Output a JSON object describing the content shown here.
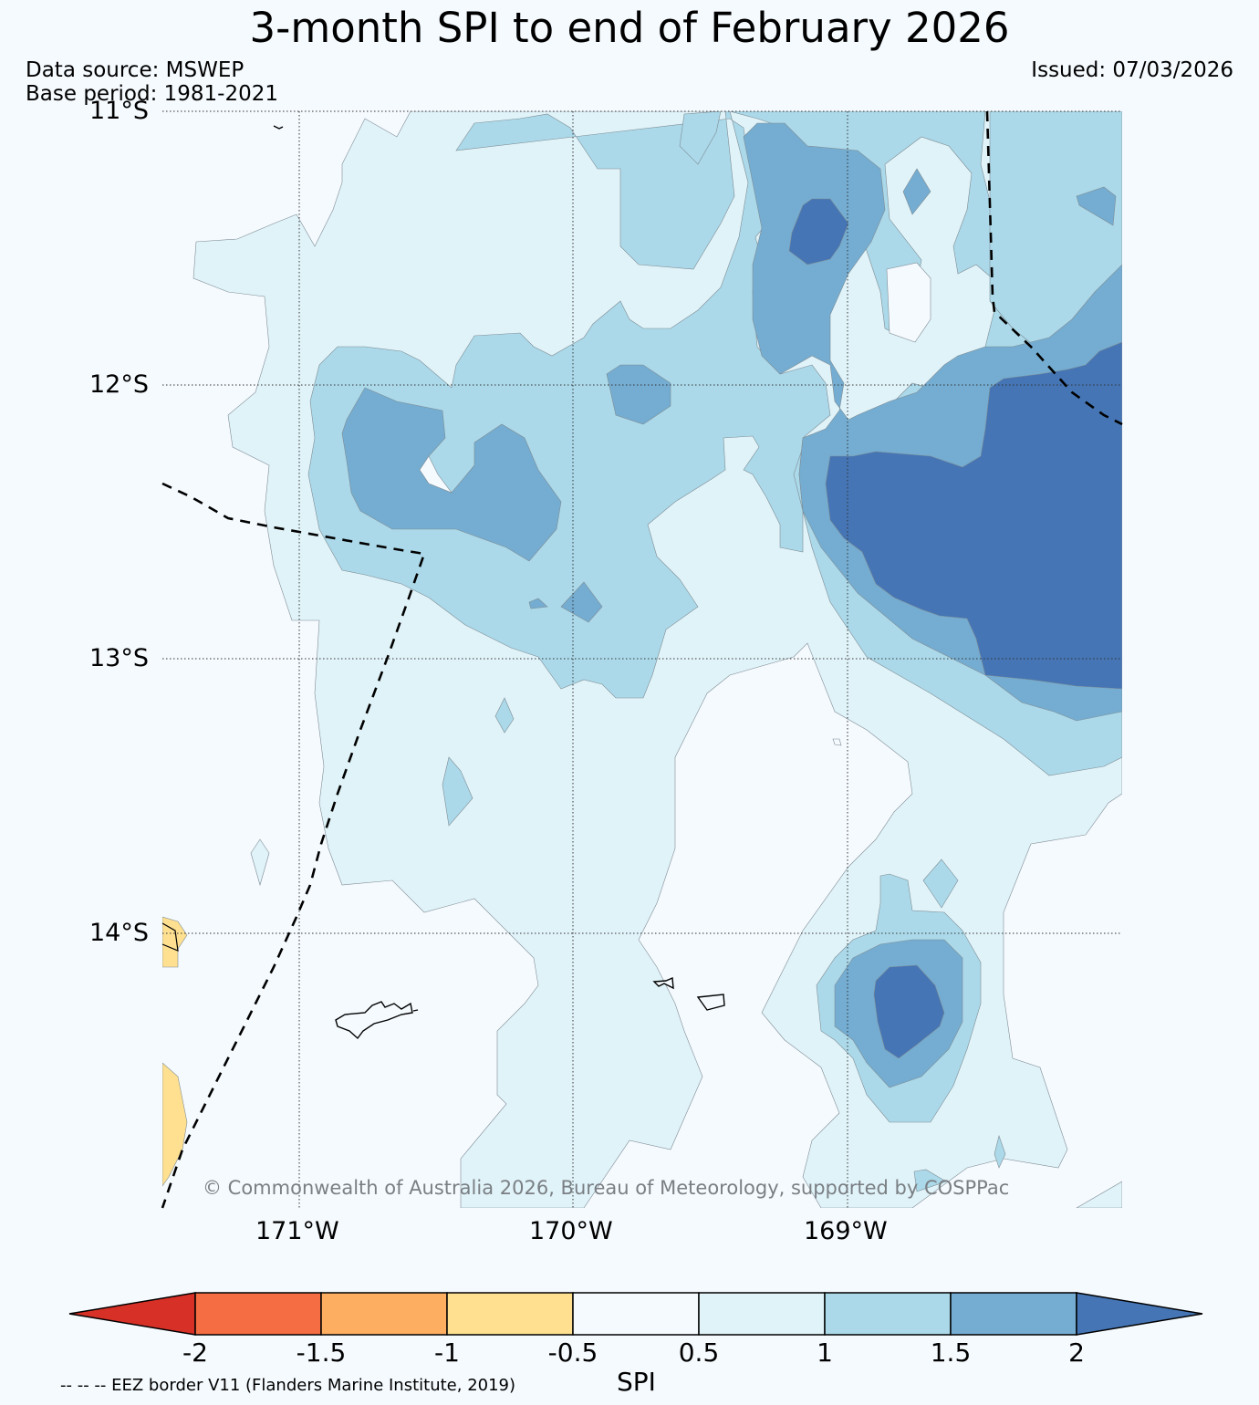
{
  "title": "3-month SPI to end of February 2026",
  "data_source": "Data source: MSWEP",
  "base_period": "Base period: 1981-2021",
  "issued": "Issued: 07/03/2026",
  "copyright": "© Commonwealth of Australia 2026, Bureau of Meteorology, supported by COSPPac",
  "latitude_labels": [
    "11°S",
    "12°S",
    "13°S",
    "14°S"
  ],
  "longitude_labels": [
    "171°W",
    "170°W",
    "169°W"
  ],
  "colorbar": {
    "label": "SPI",
    "ticks": [
      "-2",
      "-1.5",
      "-1",
      "-0.5",
      "0.5",
      "1",
      "1.5",
      "2"
    ],
    "colors": {
      "lt_-2": "#d73027",
      "-2_-1.5": "#f46d43",
      "-1.5_-1": "#fdae61",
      "-1_-0.5": "#fee090",
      "-0.5_0.5": "#f5fafe",
      "0.5_1": "#e0f3f8",
      "1_1.5": "#abd9e9",
      "1.5_2": "#74add1",
      "gt_2": "#4575b4"
    }
  },
  "legend_note": "-- -- -- EEZ border V11 (Flanders Marine Institute, 2019)"
}
